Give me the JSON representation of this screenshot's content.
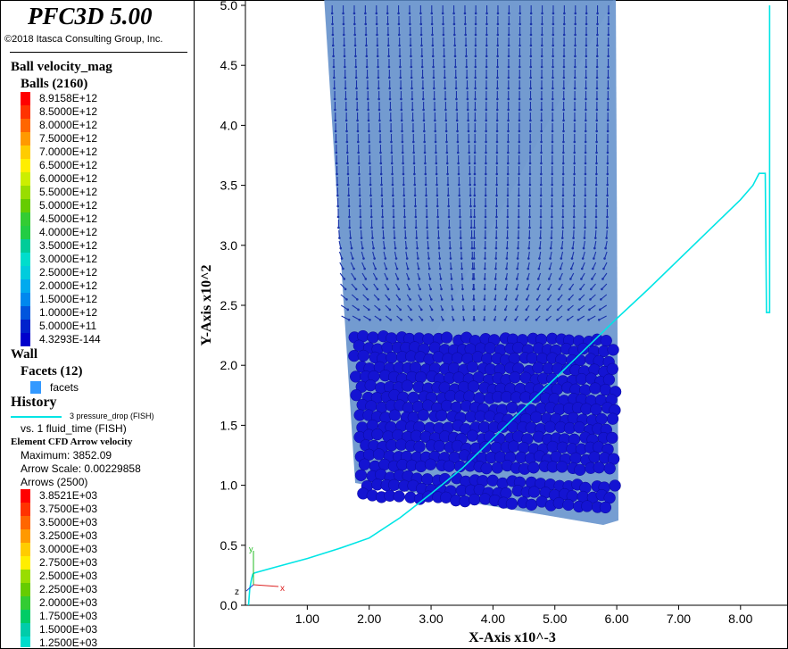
{
  "app": {
    "title": "PFC3D 5.00",
    "copyright": "©2018 Itasca Consulting Group, Inc."
  },
  "legend": {
    "ball_heading": "Ball velocity_mag",
    "balls_label": "Balls (2160)",
    "ball_scale": [
      {
        "label": "8.9158E+12",
        "color": "#ff0000"
      },
      {
        "label": "8.5000E+12",
        "color": "#ff3300"
      },
      {
        "label": "8.0000E+12",
        "color": "#ff6600"
      },
      {
        "label": "7.5000E+12",
        "color": "#ff9900"
      },
      {
        "label": "7.0000E+12",
        "color": "#ffcc00"
      },
      {
        "label": "6.5000E+12",
        "color": "#ffee00"
      },
      {
        "label": "6.0000E+12",
        "color": "#ccee00"
      },
      {
        "label": "5.5000E+12",
        "color": "#99dd00"
      },
      {
        "label": "5.0000E+12",
        "color": "#66cc00"
      },
      {
        "label": "4.5000E+12",
        "color": "#33cc33"
      },
      {
        "label": "4.0000E+12",
        "color": "#22cc44"
      },
      {
        "label": "3.5000E+12",
        "color": "#00cc99"
      },
      {
        "label": "3.0000E+12",
        "color": "#00ddcc"
      },
      {
        "label": "2.5000E+12",
        "color": "#00ccdd"
      },
      {
        "label": "2.0000E+12",
        "color": "#00aaee"
      },
      {
        "label": "1.5000E+12",
        "color": "#0088ee"
      },
      {
        "label": "1.0000E+12",
        "color": "#0055dd"
      },
      {
        "label": "5.0000E+11",
        "color": "#0022cc"
      },
      {
        "label": "4.3293E-144",
        "color": "#0000cc"
      }
    ],
    "wall_heading": "Wall",
    "facets_label": "Facets (12)",
    "facets_item": "facets",
    "facets_color": "#3399ff",
    "history_heading": "History",
    "history_series": "3 pressure_drop (FISH)",
    "history_color": "#00e5e5",
    "history_vs": "vs. 1 fluid_time (FISH)",
    "arrow_heading": "Element CFD Arrow velocity",
    "arrow_max": "Maximum: 3852.09",
    "arrow_scale": "Arrow Scale: 0.00229858",
    "arrows_label": "Arrows (2500)",
    "arrow_scale_items": [
      {
        "label": "3.8521E+03",
        "color": "#ff0000"
      },
      {
        "label": "3.7500E+03",
        "color": "#ff3300"
      },
      {
        "label": "3.5000E+03",
        "color": "#ff6600"
      },
      {
        "label": "3.2500E+03",
        "color": "#ff9900"
      },
      {
        "label": "3.0000E+03",
        "color": "#ffcc00"
      },
      {
        "label": "2.7500E+03",
        "color": "#ffee00"
      },
      {
        "label": "2.5000E+03",
        "color": "#99dd00"
      },
      {
        "label": "2.2500E+03",
        "color": "#66cc00"
      },
      {
        "label": "2.0000E+03",
        "color": "#33cc33"
      },
      {
        "label": "1.7500E+03",
        "color": "#00cc66"
      },
      {
        "label": "1.5000E+03",
        "color": "#00ccaa"
      },
      {
        "label": "1.2500E+03",
        "color": "#00ddcc"
      }
    ]
  },
  "plot": {
    "xlabel": "X-Axis x10^-3",
    "ylabel": "Y-Axis x10^2",
    "x_ticks": [
      "1.00",
      "2.00",
      "3.00",
      "4.00",
      "5.00",
      "6.00",
      "7.00",
      "8.00"
    ],
    "y_ticks": [
      "0.0",
      "0.5",
      "1.0",
      "1.5",
      "2.0",
      "2.5",
      "3.0",
      "3.5",
      "4.0",
      "4.5",
      "5.0"
    ],
    "axis_triad": {
      "x": "x",
      "y": "y",
      "z": "z"
    },
    "ball_color": "#1414d2",
    "box_color": "#5a8ac8",
    "arrow_color": "#1a33aa"
  },
  "chart_data": {
    "type": "line",
    "xlabel": "X-Axis x10^-3",
    "ylabel": "Y-Axis x10^2",
    "xlim": [
      0.0,
      8.6
    ],
    "ylim": [
      0.0,
      5.0
    ],
    "series": [
      {
        "name": "3 pressure_drop (FISH)",
        "x": [
          0.05,
          0.07,
          0.1,
          0.12,
          0.15,
          0.5,
          1.0,
          1.5,
          2.0,
          2.5,
          3.0,
          3.5,
          4.0,
          4.5,
          5.0,
          5.5,
          6.0,
          6.5,
          7.0,
          7.5,
          8.0,
          8.2,
          8.3,
          8.35,
          8.4,
          8.42,
          8.45,
          8.47,
          8.47
        ],
        "y": [
          0.0,
          0.14,
          0.22,
          0.26,
          0.27,
          0.32,
          0.39,
          0.47,
          0.56,
          0.73,
          0.93,
          1.14,
          1.39,
          1.64,
          1.89,
          2.14,
          2.39,
          2.63,
          2.88,
          3.13,
          3.38,
          3.5,
          3.6,
          3.6,
          3.6,
          2.44,
          2.44,
          2.44,
          5.0
        ]
      }
    ]
  }
}
